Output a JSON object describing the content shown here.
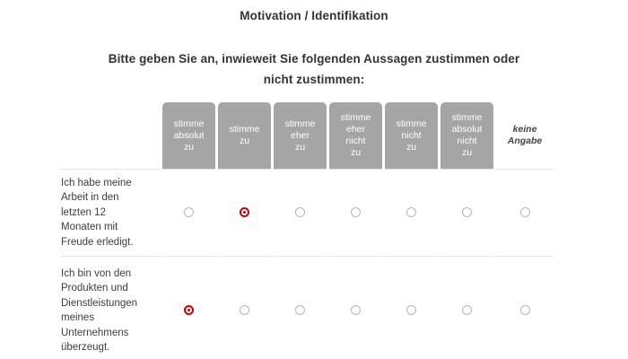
{
  "page": {
    "title": "Motivation / Identifikation",
    "subtitle": "Bitte geben Sie an, inwieweit Sie folgenden Aussagen zustimmen oder nicht zustimmen:"
  },
  "colors": {
    "header_box": "#a5a5a5",
    "header_text": "#ffffff",
    "radio_selected": "#cc0000",
    "radio_unselected_border": "#b5b5b5",
    "statement_text": "#3d3d3d",
    "divider": "#e3e3e3",
    "background": "#ffffff"
  },
  "matrix": {
    "scale_columns": [
      {
        "label": "stimme absolut zu",
        "style": "boxed"
      },
      {
        "label": "stimme zu",
        "style": "boxed"
      },
      {
        "label": "stimme eher zu",
        "style": "boxed"
      },
      {
        "label": "stimme eher nicht zu",
        "style": "boxed"
      },
      {
        "label": "stimme nicht zu",
        "style": "boxed"
      },
      {
        "label": "stimme absolut nicht zu",
        "style": "boxed"
      },
      {
        "label": "keine Angabe",
        "style": "plain-italic"
      }
    ],
    "rows": [
      {
        "statement": "Ich habe meine Arbeit in den letzten 12 Monaten mit Freude erledigt.",
        "selected_index": 1,
        "selected_option": "stimme zu"
      },
      {
        "statement": "Ich bin von den Produkten und Dienstleistungen meines Unternehmens überzeugt.",
        "selected_index": 0,
        "selected_option": "stimme absolut zu"
      }
    ]
  }
}
